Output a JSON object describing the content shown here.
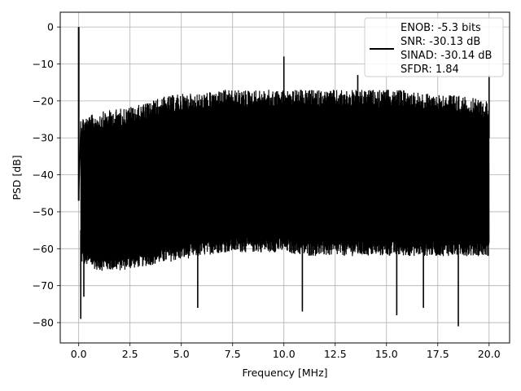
{
  "chart_data": {
    "type": "line",
    "title": "",
    "xlabel": "Frequency [MHz]",
    "ylabel": "PSD [dB]",
    "xlim": [
      -0.9,
      21.0
    ],
    "ylim": [
      -85.5,
      4
    ],
    "xticks": [
      0.0,
      2.5,
      5.0,
      7.5,
      10.0,
      12.5,
      15.0,
      17.5,
      20.0
    ],
    "xtick_labels": [
      "0.0",
      "2.5",
      "5.0",
      "7.5",
      "10.0",
      "12.5",
      "15.0",
      "17.5",
      "20.0"
    ],
    "yticks": [
      0,
      -10,
      -20,
      -30,
      -40,
      -50,
      -60,
      -70,
      -80
    ],
    "ytick_labels": [
      "0",
      "−10",
      "−20",
      "−30",
      "−40",
      "−50",
      "−60",
      "−70",
      "−80"
    ],
    "grid": true,
    "legend_position": "top-right",
    "series_color": "#000000",
    "series": [
      {
        "envelope_x": [
          0.0,
          0.05,
          0.1,
          0.5,
          1.0,
          2.0,
          3.0,
          4.0,
          5.0,
          6.0,
          7.0,
          8.0,
          9.0,
          10.0,
          11.0,
          12.0,
          13.0,
          14.0,
          15.0,
          16.0,
          17.0,
          18.0,
          19.0,
          20.0
        ],
        "envelope_upper": [
          -47,
          0,
          -24,
          -24,
          -23,
          -22,
          -21,
          -19,
          -18,
          -18,
          -17,
          -17,
          -17,
          -17,
          -17,
          -17,
          -17,
          -17,
          -17,
          -17,
          -18,
          -18,
          -19,
          -20
        ],
        "envelope_lower": [
          -47,
          -65,
          -64,
          -65,
          -66,
          -66,
          -65,
          -64,
          -63,
          -62,
          -61,
          -61,
          -61,
          -61,
          -62,
          -62,
          -62,
          -62,
          -62,
          -62,
          -62,
          -62,
          -62,
          -62
        ],
        "peaks": [
          {
            "x": 0.0,
            "y": 0
          },
          {
            "x": 10.0,
            "y": -8
          },
          {
            "x": 13.6,
            "y": -13
          },
          {
            "x": 20.0,
            "y": -13
          }
        ],
        "dips": [
          {
            "x": 0.1,
            "y": -79
          },
          {
            "x": 0.25,
            "y": -73
          },
          {
            "x": 5.8,
            "y": -76
          },
          {
            "x": 10.9,
            "y": -77
          },
          {
            "x": 15.5,
            "y": -78
          },
          {
            "x": 16.8,
            "y": -76
          },
          {
            "x": 18.5,
            "y": -81
          }
        ]
      }
    ],
    "legend": {
      "lines": [
        "ENOB: -5.3 bits",
        "SNR: -30.13 dB",
        "SINAD: -30.14 dB",
        "SFDR: 1.84"
      ]
    }
  }
}
